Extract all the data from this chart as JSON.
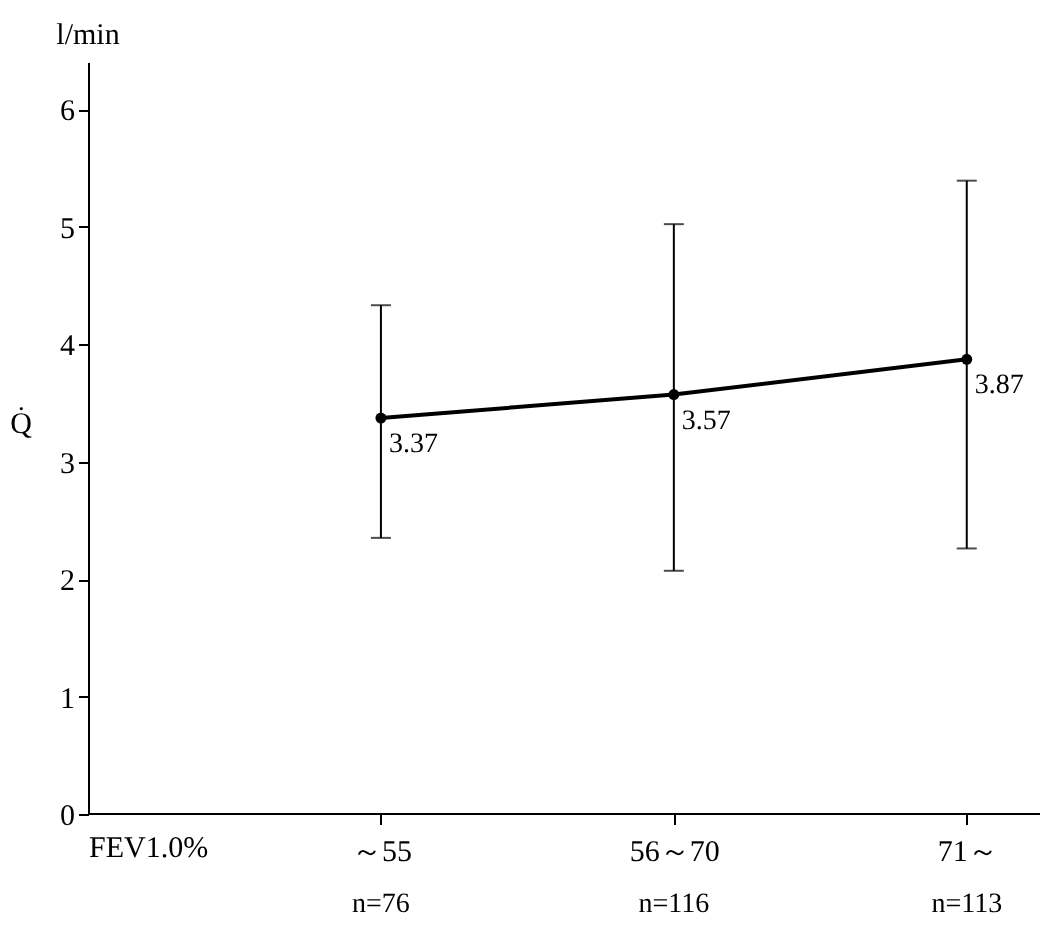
{
  "chart_data": {
    "type": "line",
    "xlabel": "FEV1.0%",
    "ylabel": "Q̇",
    "categories": [
      "～55",
      "56～70",
      "71～"
    ],
    "series": [
      {
        "color": "#000000",
        "values": [
          3.37,
          3.57,
          3.87
        ],
        "errors": [
          [
            2.35,
            4.33
          ],
          [
            2.07,
            5.02
          ],
          [
            2.26,
            5.39
          ]
        ]
      }
    ],
    "data_labels": true,
    "marker": "circle",
    "line_style": "solid",
    "grid": false,
    "ylim": [
      0,
      6.4
    ],
    "yticks": [
      0,
      1,
      2,
      3,
      4,
      5,
      6
    ],
    "annotations": [
      "l/min",
      "n=76",
      "n=116",
      "n=113"
    ]
  }
}
